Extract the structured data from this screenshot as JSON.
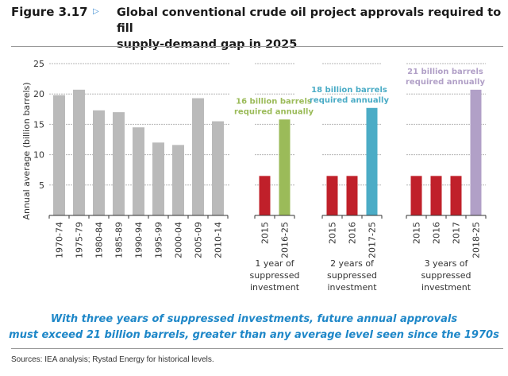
{
  "header": {
    "figure_label": "Figure 3.17",
    "arrow_icon": "triangle-right-outline",
    "title_line1": "Global conventional crude oil project approvals required to fill",
    "title_line2": "supply-demand gap in 2025"
  },
  "takeaway": {
    "line1": "With three years of suppressed investments, future annual approvals",
    "line2": "must exceed 21 billion barrels, greater than any average level seen since the 1970s"
  },
  "sources": "Sources: IEA analysis; Rystad Energy for historical levels.",
  "chart_data": {
    "type": "bar",
    "title": "Global conventional crude oil project approvals required to fill supply-demand gap in 2025",
    "xlabel": "",
    "ylabel": "Annual average (billion barrels)",
    "ylim": [
      0,
      25
    ],
    "yticks": [
      5,
      10,
      15,
      20,
      25
    ],
    "grid": true,
    "colors": {
      "historical": "#bababa",
      "suppressed": "#c0202a",
      "one_year": "#9bbb59",
      "two_years": "#4bacc6",
      "three_years": "#b1a0c7"
    },
    "panels": [
      {
        "name": "historical",
        "categories": [
          "1970-74",
          "1975-79",
          "1980-84",
          "1985-89",
          "1990-94",
          "1995-99",
          "2000-04",
          "2005-09",
          "2010-14"
        ],
        "values": [
          19.8,
          20.7,
          17.3,
          17.0,
          14.5,
          12.0,
          11.6,
          19.3,
          15.5
        ],
        "group_label": [],
        "annotation": "",
        "bar_colors": [
          "historical",
          "historical",
          "historical",
          "historical",
          "historical",
          "historical",
          "historical",
          "historical",
          "historical"
        ]
      },
      {
        "name": "one-year",
        "categories": [
          "2015",
          "2016-25"
        ],
        "values": [
          6.5,
          15.8
        ],
        "group_label": [
          "1 year of",
          "suppressed",
          "investment"
        ],
        "annotation": [
          "16 billion barrels",
          "required annually"
        ],
        "annotation_color": "one_year",
        "bar_colors": [
          "suppressed",
          "one_year"
        ]
      },
      {
        "name": "two-years",
        "categories": [
          "2015",
          "2016",
          "2017-25"
        ],
        "values": [
          6.5,
          6.5,
          17.7
        ],
        "group_label": [
          "2 years of",
          "suppressed",
          "investment"
        ],
        "annotation": [
          "18 billion barrels",
          "required annually"
        ],
        "annotation_color": "two_years",
        "bar_colors": [
          "suppressed",
          "suppressed",
          "two_years"
        ]
      },
      {
        "name": "three-years",
        "categories": [
          "2015",
          "2016",
          "2017",
          "2018-25"
        ],
        "values": [
          6.5,
          6.5,
          6.5,
          20.7
        ],
        "group_label": [
          "3 years of",
          "suppressed",
          "investment"
        ],
        "annotation": [
          "21 billion barrels",
          "required annually"
        ],
        "annotation_color": "three_years",
        "bar_colors": [
          "suppressed",
          "suppressed",
          "suppressed",
          "three_years"
        ]
      }
    ]
  }
}
